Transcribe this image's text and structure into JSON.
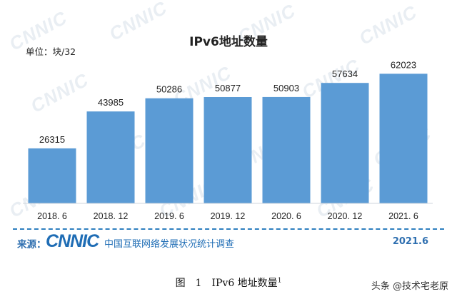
{
  "watermark_text": "CNNIC",
  "unit_label": "单位：块/32",
  "chart_title": "IPv6地址数量",
  "chart_data": {
    "type": "bar",
    "title": "IPv6地址数量",
    "categories": [
      "2018. 6",
      "2018. 12",
      "2019. 6",
      "2019. 12",
      "2020. 6",
      "2020. 12",
      "2021. 6"
    ],
    "values": [
      26315,
      43985,
      50286,
      50877,
      50903,
      57634,
      62023
    ],
    "ylim": [
      0,
      70000
    ],
    "bar_color": "#5b9bd5",
    "grid": false,
    "legend": "none"
  },
  "footer": {
    "source_label": "来源：",
    "logo_text": "CNNIC",
    "org_text": "中国互联网络发展状况统计调查",
    "date": "2021.6"
  },
  "caption": {
    "text": "图　1　IPv6 地址数量",
    "superscript": "1"
  },
  "credit": "头条 @技术宅老原",
  "colors": {
    "accent": "#1f6db5",
    "bar": "#5b9bd5",
    "footer_line": "#2f7fbf"
  }
}
